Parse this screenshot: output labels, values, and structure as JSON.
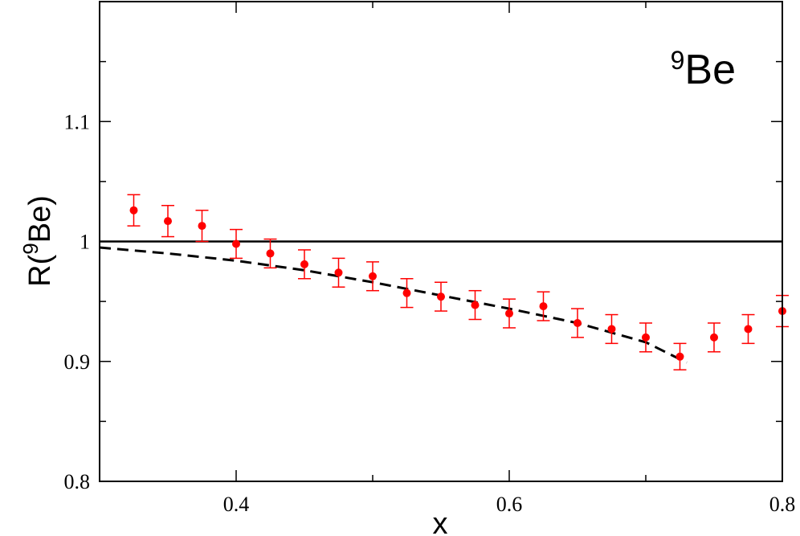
{
  "chart_data": {
    "type": "scatter",
    "xlabel": "x",
    "ylabel_main": "R(",
    "ylabel_sup": "9",
    "ylabel_tail": "Be)",
    "annotation_sup": "9",
    "annotation_main": "Be",
    "xlim": [
      0.3,
      0.8
    ],
    "ylim": [
      0.8,
      1.2
    ],
    "xticks": [
      {
        "value": 0.4,
        "label": "0.4"
      },
      {
        "value": 0.6,
        "label": "0.6"
      },
      {
        "value": 0.8,
        "label": "0.8"
      }
    ],
    "yticks": [
      {
        "value": 0.8,
        "label": "0.8"
      },
      {
        "value": 0.9,
        "label": "0.9"
      },
      {
        "value": 1.0,
        "label": "1"
      },
      {
        "value": 1.1,
        "label": "1.1"
      }
    ],
    "reference_line": {
      "y": 1.0,
      "color": "#000000"
    },
    "series": [
      {
        "kind": "points_with_errors",
        "color": "#ff0000",
        "points": [
          {
            "x": 0.325,
            "y": 1.026,
            "err": 0.013
          },
          {
            "x": 0.35,
            "y": 1.017,
            "err": 0.013
          },
          {
            "x": 0.375,
            "y": 1.013,
            "err": 0.013
          },
          {
            "x": 0.4,
            "y": 0.998,
            "err": 0.012
          },
          {
            "x": 0.425,
            "y": 0.99,
            "err": 0.012
          },
          {
            "x": 0.45,
            "y": 0.981,
            "err": 0.012
          },
          {
            "x": 0.475,
            "y": 0.974,
            "err": 0.012
          },
          {
            "x": 0.5,
            "y": 0.971,
            "err": 0.012
          },
          {
            "x": 0.525,
            "y": 0.957,
            "err": 0.012
          },
          {
            "x": 0.55,
            "y": 0.954,
            "err": 0.012
          },
          {
            "x": 0.575,
            "y": 0.947,
            "err": 0.012
          },
          {
            "x": 0.6,
            "y": 0.94,
            "err": 0.012
          },
          {
            "x": 0.625,
            "y": 0.946,
            "err": 0.012
          },
          {
            "x": 0.65,
            "y": 0.932,
            "err": 0.012
          },
          {
            "x": 0.675,
            "y": 0.927,
            "err": 0.012
          },
          {
            "x": 0.7,
            "y": 0.92,
            "err": 0.012
          },
          {
            "x": 0.725,
            "y": 0.904,
            "err": 0.011
          },
          {
            "x": 0.75,
            "y": 0.92,
            "err": 0.012
          },
          {
            "x": 0.775,
            "y": 0.927,
            "err": 0.012
          },
          {
            "x": 0.8,
            "y": 0.942,
            "err": 0.013
          }
        ]
      },
      {
        "kind": "dashed_curve",
        "color": "#000000",
        "points": [
          {
            "x": 0.3,
            "y": 0.995
          },
          {
            "x": 0.35,
            "y": 0.99
          },
          {
            "x": 0.4,
            "y": 0.984
          },
          {
            "x": 0.45,
            "y": 0.976
          },
          {
            "x": 0.5,
            "y": 0.966
          },
          {
            "x": 0.55,
            "y": 0.955
          },
          {
            "x": 0.6,
            "y": 0.944
          },
          {
            "x": 0.65,
            "y": 0.932
          },
          {
            "x": 0.7,
            "y": 0.916
          },
          {
            "x": 0.73,
            "y": 0.899
          }
        ]
      }
    ],
    "grid": false
  }
}
